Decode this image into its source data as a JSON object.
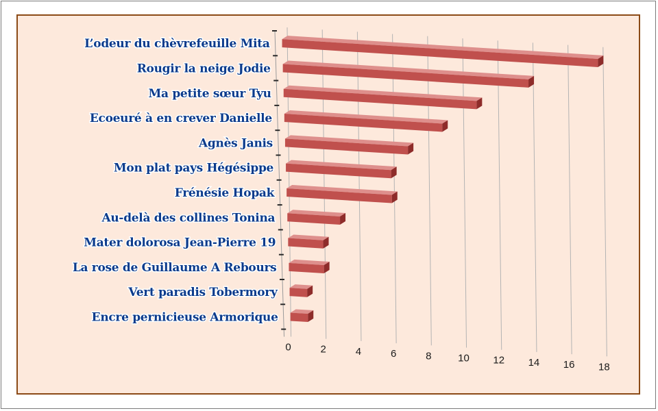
{
  "chart_data": {
    "type": "bar",
    "orientation": "horizontal",
    "style": "3d",
    "title": "",
    "xlabel": "",
    "ylabel": "",
    "categories": [
      "L’odeur du chèvrefeuille Mita",
      "Rougir la neige Jodie",
      "Ma petite sœur Tyu",
      "Ecoeuré à en crever Danielle",
      "Agnès Janis",
      "Mon plat pays Hégésippe",
      "Frénésie Hopak",
      "Au-delà des collines Tonina",
      "Mater dolorosa Jean-Pierre 19",
      "La rose de Guillaume A Rebours",
      "Vert paradis Tobermory",
      "Encre pernicieuse Armorique"
    ],
    "values": [
      18,
      14,
      11,
      9,
      7,
      6,
      6,
      3,
      2,
      2,
      1,
      1
    ],
    "xlim": [
      0,
      18
    ],
    "ticks": [
      "0",
      "2",
      "4",
      "6",
      "8",
      "10",
      "12",
      "14",
      "16",
      "18"
    ],
    "grid": true,
    "legend": "none",
    "colors": {
      "bar_front": "#c0504d",
      "bar_top": "#de8f8c",
      "bar_side": "#8e2c2a",
      "background": "#fde9dc",
      "border": "#8b4a16",
      "label_text": "#0b3b8c",
      "gridline": "#b3b3b3"
    }
  }
}
